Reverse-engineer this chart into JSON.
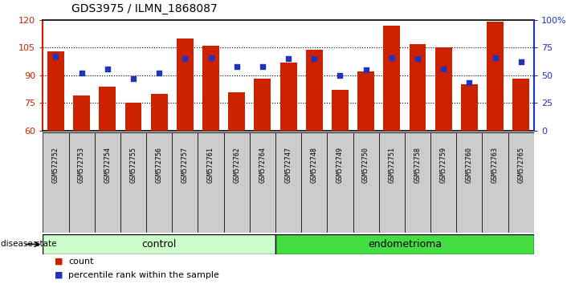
{
  "title": "GDS3975 / ILMN_1868087",
  "samples": [
    "GSM572752",
    "GSM572753",
    "GSM572754",
    "GSM572755",
    "GSM572756",
    "GSM572757",
    "GSM572761",
    "GSM572762",
    "GSM572764",
    "GSM572747",
    "GSM572748",
    "GSM572749",
    "GSM572750",
    "GSM572751",
    "GSM572758",
    "GSM572759",
    "GSM572760",
    "GSM572763",
    "GSM572765"
  ],
  "bar_values": [
    103,
    79,
    84,
    75,
    80,
    110,
    106,
    81,
    88,
    97,
    104,
    82,
    92,
    117,
    107,
    105,
    85,
    119,
    88
  ],
  "percentile_values": [
    67,
    52,
    56,
    47,
    52,
    65,
    66,
    58,
    58,
    65,
    65,
    50,
    55,
    66,
    65,
    56,
    43,
    66,
    62
  ],
  "control_count": 9,
  "endometrioma_count": 10,
  "ymin": 60,
  "ymax": 120,
  "yticks_left": [
    60,
    75,
    90,
    105,
    120
  ],
  "right_yticks": [
    0,
    25,
    50,
    75,
    100
  ],
  "right_yticklabels": [
    "0",
    "25",
    "50",
    "75",
    "100%"
  ],
  "bar_color": "#CC2200",
  "dot_color": "#2233BB",
  "bar_width": 0.65,
  "background_color": "#FFFFFF",
  "label_color_left": "#CC2200",
  "label_color_right": "#2233BB",
  "control_bg": "#CCFFCC",
  "endometrioma_bg": "#44DD44",
  "tick_bg": "#CCCCCC",
  "legend_count_label": "count",
  "legend_pct_label": "percentile rank within the sample",
  "disease_state_label": "disease state",
  "control_label": "control",
  "endometrioma_label": "endometrioma"
}
